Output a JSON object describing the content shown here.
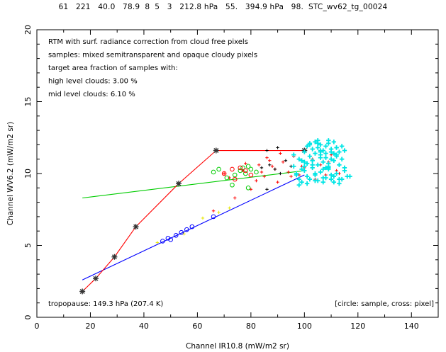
{
  "header_text": "61   221   40.0   78.9  8  5   3   212.8 hPa   55.   394.9 hPa   98.  STC_wv62_tg_00024",
  "chart_data": {
    "type": "scatter",
    "xlabel": "Channel IR10.8 (mW/m2 sr)",
    "ylabel": "Channel WV6.2 (mW/m2 sr)",
    "xlim": [
      0,
      150
    ],
    "ylim": [
      0,
      20
    ],
    "xticks": [
      0,
      20,
      40,
      60,
      80,
      100,
      120,
      140
    ],
    "yticks": [
      0,
      5,
      10,
      15,
      20
    ],
    "annotations": [
      "RTM with surf. radiance correction from cloud free pixels",
      "samples: mixed semitransparent and opaque cloudy pixels",
      "target area fraction of samples with:",
      "high level clouds:  3.00 %",
      "mid  level clouds:  6.10 %"
    ],
    "footer_left": "tropopause: 149.3 hPa (207.4 K)",
    "footer_right": "[circle: sample, cross: pixel]",
    "colors": {
      "red": "#ff0000",
      "green": "#00cc00",
      "blue": "#0000ff",
      "cyan": "#00e5e5",
      "black": "#000000",
      "yellow": "#e8e800"
    },
    "series": [
      {
        "color": "red",
        "style": "line-stars",
        "x": [
          17,
          22,
          29,
          37,
          53,
          67,
          100
        ],
        "y": [
          1.8,
          2.7,
          4.2,
          6.3,
          9.3,
          11.6,
          11.6
        ]
      },
      {
        "color": "blue",
        "style": "line",
        "x": [
          17,
          100
        ],
        "y": [
          2.6,
          9.9
        ]
      },
      {
        "color": "green",
        "style": "line",
        "x": [
          17,
          100
        ],
        "y": [
          8.3,
          10.2
        ]
      },
      {
        "color": "blue",
        "style": "circles",
        "x": [
          47,
          49,
          50,
          52,
          54,
          56,
          58,
          66
        ],
        "y": [
          5.3,
          5.5,
          5.4,
          5.7,
          5.9,
          6.1,
          6.3,
          7.0
        ]
      },
      {
        "color": "green",
        "style": "circles",
        "x": [
          66,
          68,
          71,
          74,
          76,
          77,
          78,
          79,
          80,
          82,
          73,
          79
        ],
        "y": [
          10.1,
          10.3,
          9.7,
          9.9,
          10.2,
          10.4,
          10.0,
          10.5,
          10.3,
          10.1,
          9.2,
          9.0
        ]
      },
      {
        "color": "red",
        "style": "circles",
        "x": [
          70,
          73,
          76,
          78,
          80,
          74
        ],
        "y": [
          10.0,
          10.3,
          10.4,
          10.2,
          9.9,
          9.6
        ]
      },
      {
        "color": "red",
        "style": "crosses",
        "x": [
          66,
          70,
          74,
          77,
          80,
          83,
          85,
          86,
          88,
          90,
          92,
          94,
          96,
          98,
          100,
          103,
          106,
          108,
          110,
          112,
          72,
          78,
          82,
          87,
          91,
          95,
          99,
          104,
          109,
          113,
          84,
          89
        ],
        "y": [
          7.4,
          10.0,
          8.3,
          10.2,
          8.9,
          10.6,
          9.8,
          11.1,
          10.5,
          9.4,
          10.8,
          10.1,
          11.2,
          9.9,
          10.4,
          11.0,
          10.6,
          9.9,
          11.3,
          10.2,
          9.7,
          10.7,
          9.5,
          10.9,
          11.4,
          9.8,
          10.5,
          9.6,
          10.8,
          10.0,
          10.1,
          10.3
        ]
      },
      {
        "color": "black",
        "style": "crosses",
        "x": [
          84,
          86,
          87,
          89,
          90,
          91,
          93,
          95,
          86
        ],
        "y": [
          10.4,
          11.6,
          10.6,
          10.3,
          11.8,
          10.0,
          10.9,
          10.5,
          8.9
        ]
      },
      {
        "color": "yellow",
        "style": "crosses",
        "x": [
          45,
          55,
          62,
          68,
          72
        ],
        "y": [
          5.2,
          5.8,
          6.9,
          7.3,
          7.6
        ]
      },
      {
        "color": "cyan",
        "style": "crosses",
        "x": [
          96,
          98,
          100,
          101,
          102,
          103,
          104,
          105,
          106,
          107,
          108,
          109,
          110,
          111,
          112,
          113,
          114,
          115,
          100,
          102,
          104,
          106,
          108,
          110,
          112,
          114,
          99,
          101,
          103,
          105,
          107,
          109,
          111,
          113,
          97,
          100,
          103,
          106,
          109,
          112,
          115,
          98,
          101,
          104,
          107,
          110,
          113,
          116,
          99,
          102,
          105,
          108,
          111,
          114,
          100,
          103,
          106,
          109,
          112,
          101,
          104,
          107,
          110,
          113,
          102,
          105,
          108,
          111,
          103,
          106,
          109,
          112,
          104,
          107,
          110,
          105,
          108,
          111,
          106,
          109,
          97,
          99,
          115,
          117,
          96,
          98
        ],
        "y": [
          10.5,
          11.0,
          11.5,
          11.9,
          12.1,
          11.7,
          12.2,
          11.8,
          12.0,
          11.6,
          11.9,
          12.1,
          11.7,
          11.4,
          11.8,
          11.5,
          11.9,
          11.6,
          10.8,
          11.2,
          11.4,
          11.3,
          11.1,
          11.5,
          11.2,
          11.0,
          10.3,
          10.7,
          10.9,
          10.6,
          10.8,
          10.5,
          10.9,
          10.6,
          9.9,
          10.2,
          10.4,
          10.1,
          10.3,
          10.0,
          10.2,
          9.6,
          9.8,
          10.0,
          9.7,
          9.9,
          9.6,
          9.8,
          9.4,
          9.6,
          9.5,
          9.7,
          9.4,
          9.6,
          10.5,
          10.9,
          11.6,
          10.4,
          11.3,
          9.3,
          9.5,
          9.4,
          9.6,
          9.3,
          12.0,
          12.3,
          11.4,
          12.2,
          10.6,
          11.1,
          10.7,
          11.8,
          9.9,
          10.3,
          11.0,
          12.1,
          10.4,
          9.8,
          11.5,
          12.3,
          10.0,
          10.9,
          10.4,
          9.8,
          11.3,
          9.2
        ]
      }
    ]
  }
}
